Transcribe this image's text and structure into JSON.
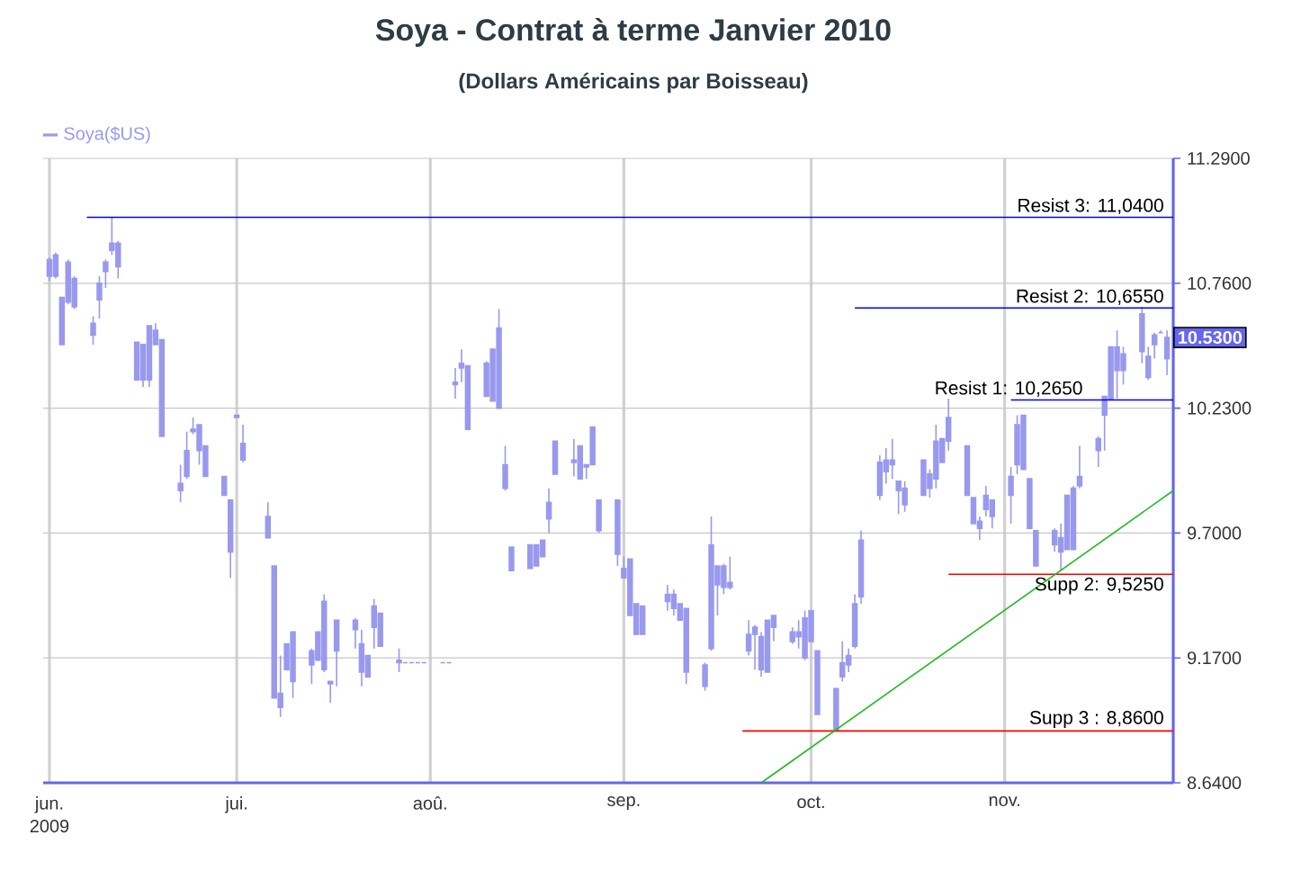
{
  "chart_data": {
    "type": "candlestick",
    "title": "Soya - Contrat à terme Janvier 2010",
    "subtitle": "(Dollars Américains par Boisseau)",
    "xlim": [
      "2009-05-31",
      "2009-11-28"
    ],
    "ylim": [
      8.64,
      11.29
    ],
    "xticks": [
      {
        "value": "2009-06-01",
        "label": "jun."
      },
      {
        "value": "2009-07-01",
        "label": "jui."
      },
      {
        "value": "2009-08-01",
        "label": "aoû."
      },
      {
        "value": "2009-09-01",
        "label": "sep."
      },
      {
        "value": "2009-10-01",
        "label": "oct."
      },
      {
        "value": "2009-11-01",
        "label": "nov."
      }
    ],
    "yticks": [
      {
        "value": 8.64,
        "label": "8.6400"
      },
      {
        "value": 9.17,
        "label": "9.1700"
      },
      {
        "value": 9.7,
        "label": "9.7000"
      },
      {
        "value": 10.23,
        "label": "10.2300"
      },
      {
        "value": 10.76,
        "label": "10.7600"
      },
      {
        "value": 11.29,
        "label": "11.2900"
      }
    ],
    "grid": true,
    "legend": "top left",
    "series": [
      {
        "name": "Soya($US)",
        "color": "#9999ee",
        "x": [
          "2009-06-01",
          "2009-06-02",
          "2009-06-03",
          "2009-06-04",
          "2009-06-05",
          "2009-06-08",
          "2009-06-09",
          "2009-06-10",
          "2009-06-11",
          "2009-06-12",
          "2009-06-15",
          "2009-06-16",
          "2009-06-17",
          "2009-06-18",
          "2009-06-19",
          "2009-06-22",
          "2009-06-23",
          "2009-06-24",
          "2009-06-25",
          "2009-06-26",
          "2009-06-29",
          "2009-06-30",
          "2009-07-01",
          "2009-07-02",
          "2009-07-06",
          "2009-07-07",
          "2009-07-08",
          "2009-07-09",
          "2009-07-10",
          "2009-07-13",
          "2009-07-14",
          "2009-07-15",
          "2009-07-16",
          "2009-07-17",
          "2009-07-20",
          "2009-07-21",
          "2009-07-22",
          "2009-07-23",
          "2009-07-24",
          "2009-07-27",
          "2009-07-28",
          "2009-07-29",
          "2009-07-30",
          "2009-07-31",
          "2009-08-03",
          "2009-08-04",
          "2009-08-05",
          "2009-08-06",
          "2009-08-07",
          "2009-08-10",
          "2009-08-11",
          "2009-08-12",
          "2009-08-13",
          "2009-08-14",
          "2009-08-17",
          "2009-08-18",
          "2009-08-19",
          "2009-08-20",
          "2009-08-21",
          "2009-08-24",
          "2009-08-25",
          "2009-08-26",
          "2009-08-27",
          "2009-08-28",
          "2009-08-31",
          "2009-09-01",
          "2009-09-02",
          "2009-09-03",
          "2009-09-04",
          "2009-09-08",
          "2009-09-09",
          "2009-09-10",
          "2009-09-11",
          "2009-09-14",
          "2009-09-15",
          "2009-09-16",
          "2009-09-17",
          "2009-09-18",
          "2009-09-21",
          "2009-09-22",
          "2009-09-23",
          "2009-09-24",
          "2009-09-25",
          "2009-09-28",
          "2009-09-29",
          "2009-09-30",
          "2009-10-01",
          "2009-10-02",
          "2009-10-05",
          "2009-10-06",
          "2009-10-07",
          "2009-10-08",
          "2009-10-09",
          "2009-10-12",
          "2009-10-13",
          "2009-10-14",
          "2009-10-15",
          "2009-10-16",
          "2009-10-19",
          "2009-10-20",
          "2009-10-21",
          "2009-10-22",
          "2009-10-23",
          "2009-10-26",
          "2009-10-27",
          "2009-10-28",
          "2009-10-29",
          "2009-10-30",
          "2009-11-02",
          "2009-11-03",
          "2009-11-04",
          "2009-11-05",
          "2009-11-06",
          "2009-11-09",
          "2009-11-10",
          "2009-11-11",
          "2009-11-12",
          "2009-11-13",
          "2009-11-16",
          "2009-11-17",
          "2009-11-18",
          "2009-11-19",
          "2009-11-20",
          "2009-11-23",
          "2009-11-24",
          "2009-11-25",
          "2009-11-26",
          "2009-11-27"
        ],
        "ohlc": [
          [
            10.86,
            10.87,
            10.77,
            10.79
          ],
          [
            10.88,
            10.89,
            10.78,
            10.79
          ],
          [
            10.7,
            10.7,
            10.5,
            10.5
          ],
          [
            10.85,
            10.86,
            10.67,
            10.68
          ],
          [
            10.78,
            10.79,
            10.65,
            10.66
          ],
          [
            10.59,
            10.62,
            10.5,
            10.54
          ],
          [
            10.76,
            10.79,
            10.61,
            10.69
          ],
          [
            10.85,
            10.86,
            10.74,
            10.81
          ],
          [
            10.93,
            11.04,
            10.88,
            10.9
          ],
          [
            10.93,
            10.94,
            10.78,
            10.83
          ],
          [
            10.51,
            10.51,
            10.35,
            10.35
          ],
          [
            10.5,
            10.5,
            10.32,
            10.35
          ],
          [
            10.58,
            10.58,
            10.32,
            10.35
          ],
          [
            10.56,
            10.59,
            10.5,
            10.5
          ],
          [
            10.52,
            10.52,
            10.11,
            10.11
          ],
          [
            9.91,
            9.99,
            9.83,
            9.88
          ],
          [
            10.05,
            10.13,
            9.93,
            9.94
          ],
          [
            10.14,
            10.19,
            10.12,
            10.13
          ],
          [
            10.16,
            10.16,
            9.99,
            10.05
          ],
          [
            10.07,
            10.07,
            9.94,
            9.94
          ],
          [
            9.94,
            9.94,
            9.86,
            9.86
          ],
          [
            9.84,
            9.84,
            9.51,
            9.62
          ],
          [
            10.2,
            10.2,
            10.19,
            10.19
          ],
          [
            10.08,
            10.16,
            10.0,
            10.01
          ],
          [
            9.77,
            9.83,
            9.68,
            9.68
          ],
          [
            9.56,
            9.56,
            9.0,
            9.0
          ],
          [
            9.02,
            9.18,
            8.92,
            8.96
          ],
          [
            9.23,
            9.23,
            9.12,
            9.12
          ],
          [
            9.28,
            9.28,
            9.0,
            9.07
          ],
          [
            9.2,
            9.21,
            9.06,
            9.14
          ],
          [
            9.28,
            9.28,
            9.16,
            9.16
          ],
          [
            9.41,
            9.44,
            9.11,
            9.12
          ],
          [
            9.07,
            9.07,
            8.98,
            9.06
          ],
          [
            9.33,
            9.33,
            9.05,
            9.2
          ],
          [
            9.33,
            9.34,
            9.21,
            9.29
          ],
          [
            9.23,
            9.29,
            9.05,
            9.11
          ],
          [
            9.18,
            9.18,
            9.09,
            9.09
          ],
          [
            9.39,
            9.42,
            9.21,
            9.3
          ],
          [
            9.36,
            9.36,
            9.22,
            9.22
          ],
          [
            9.16,
            9.21,
            9.11,
            9.15
          ],
          [
            9.15,
            9.15,
            9.15,
            9.15
          ],
          [
            9.15,
            9.15,
            9.15,
            9.15
          ],
          [
            9.15,
            9.15,
            9.15,
            9.15
          ],
          [
            9.15,
            9.15,
            9.15,
            9.15
          ],
          [
            9.15,
            9.15,
            9.15,
            9.15
          ],
          [
            9.15,
            9.15,
            9.15,
            9.15
          ],
          [
            10.34,
            10.4,
            10.27,
            10.33
          ],
          [
            10.42,
            10.48,
            10.34,
            10.4
          ],
          [
            10.41,
            10.41,
            10.14,
            10.14
          ],
          [
            10.42,
            10.43,
            10.28,
            10.28
          ],
          [
            10.48,
            10.48,
            10.26,
            10.26
          ],
          [
            10.57,
            10.65,
            10.23,
            10.23
          ],
          [
            9.99,
            10.07,
            9.88,
            9.89
          ],
          [
            9.64,
            9.64,
            9.54,
            9.54
          ],
          [
            9.65,
            9.65,
            9.55,
            9.55
          ],
          [
            9.65,
            9.65,
            9.56,
            9.56
          ],
          [
            9.67,
            9.67,
            9.6,
            9.6
          ],
          [
            9.83,
            9.89,
            9.7,
            9.76
          ],
          [
            10.09,
            10.09,
            9.95,
            9.95
          ],
          [
            10.01,
            10.1,
            9.94,
            10.0
          ],
          [
            10.07,
            10.07,
            9.93,
            9.93
          ],
          [
            9.99,
            9.99,
            9.93,
            9.98
          ],
          [
            10.15,
            10.15,
            9.99,
            9.99
          ],
          [
            9.84,
            9.84,
            9.7,
            9.71
          ],
          [
            9.84,
            9.84,
            9.56,
            9.61
          ],
          [
            9.55,
            9.6,
            9.51,
            9.51
          ],
          [
            9.59,
            9.59,
            9.35,
            9.35
          ],
          [
            9.4,
            9.4,
            9.27,
            9.27
          ],
          [
            9.39,
            9.39,
            9.27,
            9.27
          ],
          [
            9.44,
            9.48,
            9.37,
            9.41
          ],
          [
            9.44,
            9.46,
            9.35,
            9.38
          ],
          [
            9.4,
            9.4,
            9.33,
            9.33
          ],
          [
            9.38,
            9.38,
            9.06,
            9.11
          ],
          [
            9.14,
            9.15,
            9.03,
            9.05
          ],
          [
            9.65,
            9.77,
            9.2,
            9.21
          ],
          [
            9.56,
            9.56,
            9.35,
            9.48
          ],
          [
            9.56,
            9.57,
            9.44,
            9.47
          ],
          [
            9.49,
            9.6,
            9.46,
            9.47
          ],
          [
            9.27,
            9.33,
            9.18,
            9.2
          ],
          [
            9.3,
            9.31,
            9.12,
            9.27
          ],
          [
            9.26,
            9.28,
            9.09,
            9.12
          ],
          [
            9.33,
            9.33,
            9.11,
            9.11
          ],
          [
            9.35,
            9.35,
            9.24,
            9.3
          ],
          [
            9.28,
            9.3,
            9.23,
            9.24
          ],
          [
            9.28,
            9.33,
            9.21,
            9.26
          ],
          [
            9.34,
            9.37,
            9.16,
            9.17
          ],
          [
            9.37,
            9.37,
            9.24,
            9.24
          ],
          [
            9.2,
            9.2,
            8.93,
            8.93
          ],
          [
            9.04,
            9.04,
            8.86,
            8.86
          ],
          [
            9.15,
            9.24,
            9.07,
            9.09
          ],
          [
            9.18,
            9.21,
            9.11,
            9.14
          ],
          [
            9.4,
            9.44,
            9.21,
            9.22
          ],
          [
            9.67,
            9.71,
            9.4,
            9.43
          ],
          [
            10.0,
            10.03,
            9.84,
            9.86
          ],
          [
            10.01,
            10.06,
            9.91,
            9.96
          ],
          [
            10.01,
            10.1,
            9.93,
            9.99
          ],
          [
            9.92,
            9.92,
            9.78,
            9.88
          ],
          [
            9.89,
            9.92,
            9.79,
            9.82
          ],
          [
            10.01,
            10.01,
            9.86,
            9.86
          ],
          [
            9.95,
            9.97,
            9.85,
            9.89
          ],
          [
            10.09,
            10.16,
            9.89,
            9.93
          ],
          [
            10.1,
            10.1,
            10.0,
            10.0
          ],
          [
            10.19,
            10.27,
            10.05,
            10.09
          ],
          [
            10.07,
            10.07,
            9.86,
            9.86
          ],
          [
            9.85,
            9.85,
            9.74,
            9.74
          ],
          [
            9.75,
            9.77,
            9.67,
            9.72
          ],
          [
            9.86,
            9.9,
            9.77,
            9.8
          ],
          [
            9.84,
            9.84,
            9.72,
            9.77
          ],
          [
            9.94,
            9.98,
            9.74,
            9.86
          ],
          [
            10.16,
            10.2,
            9.95,
            9.99
          ],
          [
            10.2,
            10.2,
            9.97,
            9.97
          ],
          [
            9.93,
            9.93,
            9.72,
            9.72
          ],
          [
            9.71,
            9.71,
            9.56,
            9.56
          ],
          [
            9.71,
            9.72,
            9.62,
            9.65
          ],
          [
            9.68,
            9.74,
            9.54,
            9.62
          ],
          [
            9.86,
            9.86,
            9.63,
            9.63
          ],
          [
            9.89,
            9.9,
            9.63,
            9.63
          ],
          [
            9.94,
            10.07,
            9.89,
            9.9
          ],
          [
            10.1,
            10.11,
            9.98,
            10.05
          ],
          [
            10.28,
            10.28,
            10.05,
            10.2
          ],
          [
            10.49,
            10.49,
            10.27,
            10.27
          ],
          [
            10.49,
            10.56,
            10.27,
            10.39
          ],
          [
            10.46,
            10.49,
            10.33,
            10.39
          ],
          [
            10.63,
            10.66,
            10.42,
            10.47
          ],
          [
            10.45,
            10.49,
            10.35,
            10.36
          ],
          [
            10.54,
            10.55,
            10.44,
            10.5
          ],
          [
            10.55,
            10.56,
            10.55,
            10.55
          ],
          [
            10.53,
            10.56,
            10.37,
            10.44
          ]
        ]
      },
      {
        "type": "line",
        "color": "#0000ff",
        "x": [
          "2009-06-07",
          "2009-11-28"
        ],
        "values": [
          11.04,
          11.04
        ]
      },
      {
        "type": "line",
        "color": "#0000ff",
        "x": [
          "2009-10-08",
          "2009-11-28"
        ],
        "values": [
          10.655,
          10.655
        ]
      },
      {
        "type": "line",
        "color": "#0000ff",
        "x": [
          "2009-11-02",
          "2009-11-28"
        ],
        "values": [
          10.265,
          10.265
        ]
      },
      {
        "type": "line",
        "color": "#ff0000",
        "x": [
          "2009-10-23",
          "2009-11-28"
        ],
        "values": [
          9.525,
          9.525
        ]
      },
      {
        "type": "line",
        "color": "#ff0000",
        "x": [
          "2009-09-20",
          "2009-11-28"
        ],
        "values": [
          8.86,
          8.86
        ]
      },
      {
        "type": "line",
        "color": "#22bb22",
        "x": [
          "2009-09-23",
          "2009-11-28"
        ],
        "values": [
          8.64,
          9.88
        ]
      }
    ],
    "annotations": [
      "2009",
      {
        "text": "Resist 3: 11,0400",
        "x": "2009-11-27",
        "y": 11.04
      },
      {
        "text": "Resist 2: 10,6550",
        "x": "2009-11-27",
        "y": 10.655
      },
      {
        "text": "Resist 1: 10,2650",
        "x": "2009-11-14",
        "y": 10.265
      },
      {
        "text": "Supp 2: 9,5250",
        "x": "2009-11-27",
        "y": 9.525
      },
      {
        "text": "Supp 3 : 8,8600",
        "x": "2009-11-27",
        "y": 8.86
      },
      "10.5300"
    ]
  }
}
